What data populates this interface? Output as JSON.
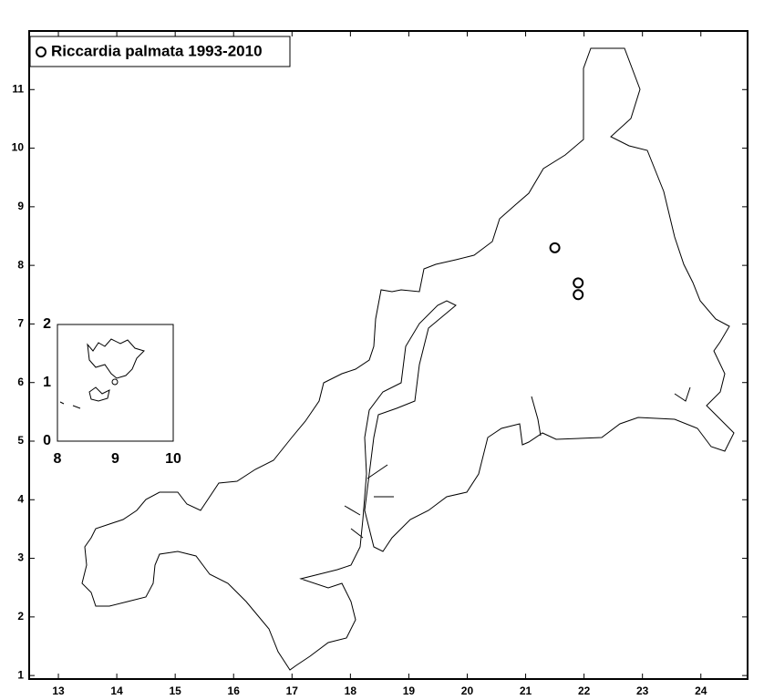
{
  "chart_data": [
    {
      "type": "scatter",
      "series": [
        {
          "name": "Riccardia palmata 1993-2010",
          "color": "#000000",
          "x": [
            21.5,
            21.9,
            21.9
          ],
          "values": [
            8.3,
            7.7,
            7.5
          ]
        }
      ],
      "xlim": [
        12.5,
        24.8
      ],
      "ylim": [
        0.94,
        12.0
      ],
      "xticks": [
        13,
        14,
        15,
        16,
        17,
        18,
        19,
        20,
        21,
        22,
        23,
        24
      ],
      "yticks": [
        1,
        2,
        3,
        4,
        5,
        6,
        7,
        8,
        9,
        10,
        11
      ],
      "legend": "upper left"
    },
    {
      "type": "inset",
      "xlim": [
        8,
        10
      ],
      "ylim": [
        0,
        2
      ],
      "xticks": [
        8,
        9,
        10
      ],
      "yticks": [
        0,
        1,
        2
      ]
    }
  ]
}
